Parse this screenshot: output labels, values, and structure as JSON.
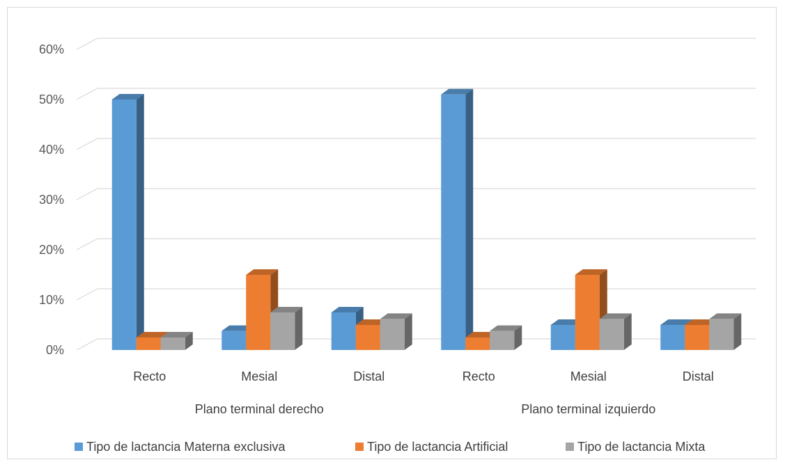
{
  "chart_data": {
    "type": "bar",
    "style": "3d-clustered-column",
    "title": "",
    "groups": [
      {
        "label": "Plano terminal derecho",
        "categories": [
          "Recto",
          "Mesial",
          "Distal"
        ]
      },
      {
        "label": "Plano terminal izquierdo",
        "categories": [
          "Recto",
          "Mesial",
          "Distal"
        ]
      }
    ],
    "series": [
      {
        "name": "Tipo de lactancia Materna exclusiva",
        "color": "#5B9BD5",
        "values": [
          50,
          3.8,
          7.5,
          51,
          5,
          5
        ]
      },
      {
        "name": "Tipo de lactancia Artificial",
        "color": "#ED7D31",
        "values": [
          2.5,
          15,
          5,
          2.5,
          15,
          5
        ]
      },
      {
        "name": "Tipo de lactancia Mixta",
        "color": "#A5A5A5",
        "values": [
          2.5,
          7.5,
          6.2,
          3.8,
          6.2,
          6.2
        ]
      }
    ],
    "y_ticks": [
      "0%",
      "10%",
      "20%",
      "30%",
      "40%",
      "50%",
      "60%"
    ],
    "ylim": [
      0,
      60
    ],
    "y_unit": "%",
    "grid": true,
    "legend_position": "bottom"
  }
}
